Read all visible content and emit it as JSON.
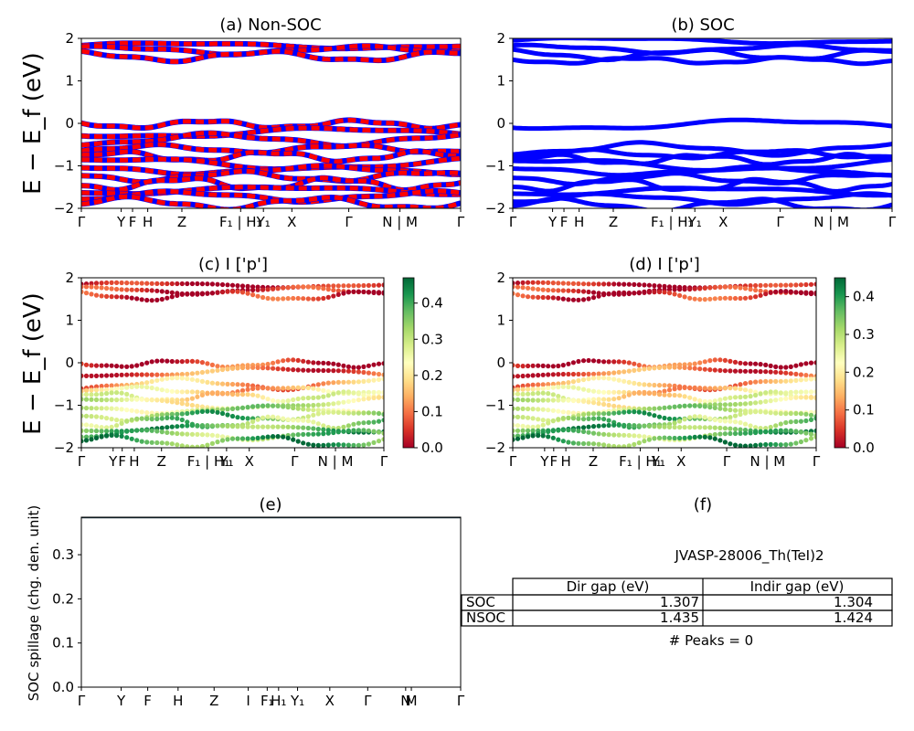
{
  "colors": {
    "spin_up": "#ff0000",
    "spin_down": "#0000ff",
    "soc": "#0000ff",
    "spillage_line": "#1a3340",
    "cmap": [
      "#a50026",
      "#d73027",
      "#f46d43",
      "#fdae61",
      "#fee08b",
      "#ffffbf",
      "#d9ef8b",
      "#a6d96a",
      "#66bd63",
      "#1a9850",
      "#006837"
    ]
  },
  "kpath_labels": [
    "Γ",
    "Y",
    "F",
    "H",
    "Z",
    "F₁ | H₁",
    "Y₁",
    "X",
    "Γ",
    "N | M",
    "Γ"
  ],
  "kpath_labels_e": [
    "Γ",
    "Y",
    "F",
    "H",
    "Z",
    "I",
    "F₁",
    "H₁",
    "Y₁",
    "X",
    "Γ",
    "N",
    "M",
    "Γ"
  ],
  "panels": {
    "a": {
      "title": "(a) Non-SOC",
      "ylabel": "E − E_f (eV)"
    },
    "b": {
      "title": "(b) SOC"
    },
    "c": {
      "title": "(c)  I ['p']",
      "ylabel": "E − E_f (eV)"
    },
    "d": {
      "title": "(d) I ['p']"
    },
    "e": {
      "title": "(e)",
      "ylabel": "SOC spillage (chg. den. unit)"
    },
    "f": {
      "title": "(f)"
    }
  },
  "info": {
    "id": "JVASP-28006_Th(TeI)2",
    "headers": [
      "Dir gap (eV)",
      "Indir gap (eV)"
    ],
    "rows": [
      {
        "name": "SOC",
        "dir": "1.307",
        "indir": "1.304"
      },
      {
        "name": "NSOC",
        "dir": "1.435",
        "indir": "1.424"
      }
    ],
    "peaks": "# Peaks = 0"
  },
  "chart_data": [
    {
      "panel": "a",
      "type": "line",
      "title": "(a) Non-SOC",
      "ylabel": "E − E_f (eV)",
      "ylim": [
        -2,
        2
      ],
      "yticks": [
        -2,
        -1,
        0,
        1,
        2
      ],
      "series": [
        {
          "name": "",
          "description": "spin-up (red) and spin-down (blue) bands",
          "color": "#ff0000"
        }
      ],
      "conduction_bands_eV": [
        1.83,
        1.72,
        1.58
      ],
      "valence_bands_eV": [
        -0.02,
        -0.22,
        -0.38,
        -0.6,
        -0.78,
        -0.95,
        -1.1,
        -1.25,
        -1.42,
        -1.58,
        -1.72,
        -1.88
      ]
    },
    {
      "panel": "b",
      "type": "line",
      "title": "(b) SOC",
      "ylim": [
        -2,
        2
      ],
      "yticks": [
        -2,
        -1,
        0,
        1,
        2
      ],
      "conduction_bands_eV": [
        1.95,
        1.75,
        1.62,
        1.48
      ],
      "valence_bands_eV": [
        -0.03,
        -0.6,
        -0.72,
        -0.85,
        -0.98,
        -1.12,
        -1.3,
        -1.45,
        -1.6,
        -1.78,
        -1.92
      ]
    },
    {
      "panel": "c",
      "type": "scatter",
      "title": "(c)  I ['p']",
      "ylim": [
        -2,
        2
      ],
      "colorbar": {
        "min": 0.0,
        "max": 0.47,
        "ticks": [
          0.0,
          0.1,
          0.2,
          0.3,
          0.4
        ]
      }
    },
    {
      "panel": "d",
      "type": "scatter",
      "title": "(d) I ['p']",
      "ylim": [
        -2,
        2
      ],
      "colorbar": {
        "min": 0.0,
        "max": 0.45,
        "ticks": [
          0.0,
          0.1,
          0.2,
          0.3,
          0.4
        ]
      }
    },
    {
      "panel": "e",
      "type": "line",
      "title": "(e)",
      "ylabel": "SOC spillage (chg. den. unit)",
      "ylim": [
        0.0,
        0.385
      ],
      "yticks": [
        0.0,
        0.1,
        0.2,
        0.3
      ],
      "values": [
        0.384,
        0.384,
        0.384,
        0.384,
        0.384,
        0.384,
        0.384,
        0.384,
        0.384,
        0.384,
        0.384,
        0.384,
        0.384,
        0.384
      ]
    }
  ]
}
